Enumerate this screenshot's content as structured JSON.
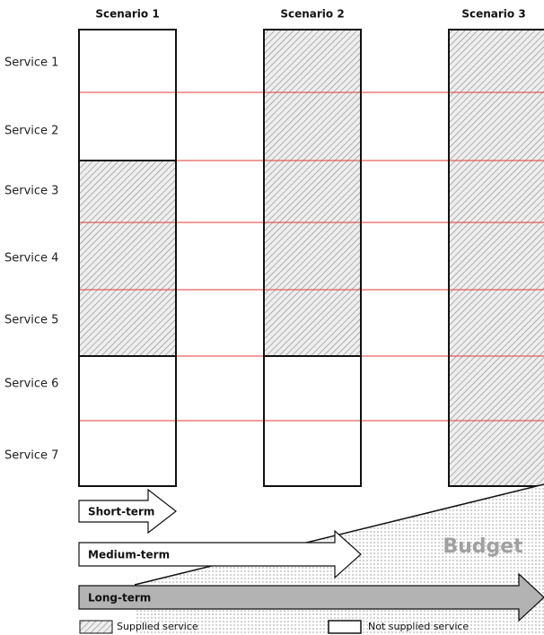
{
  "scenarios": [
    "Scenario 1",
    "Scenario 2",
    "Scenario 3"
  ],
  "services": [
    "Service 1",
    "Service 2",
    "Service 3",
    "Service 4",
    "Service 5",
    "Service 6",
    "Service 7"
  ],
  "horizons": [
    "Short-term",
    "Medium-term",
    "Long-term"
  ],
  "budget_label": "Budget",
  "legend": [
    "Supplied service",
    "Not supplied service"
  ]
}
